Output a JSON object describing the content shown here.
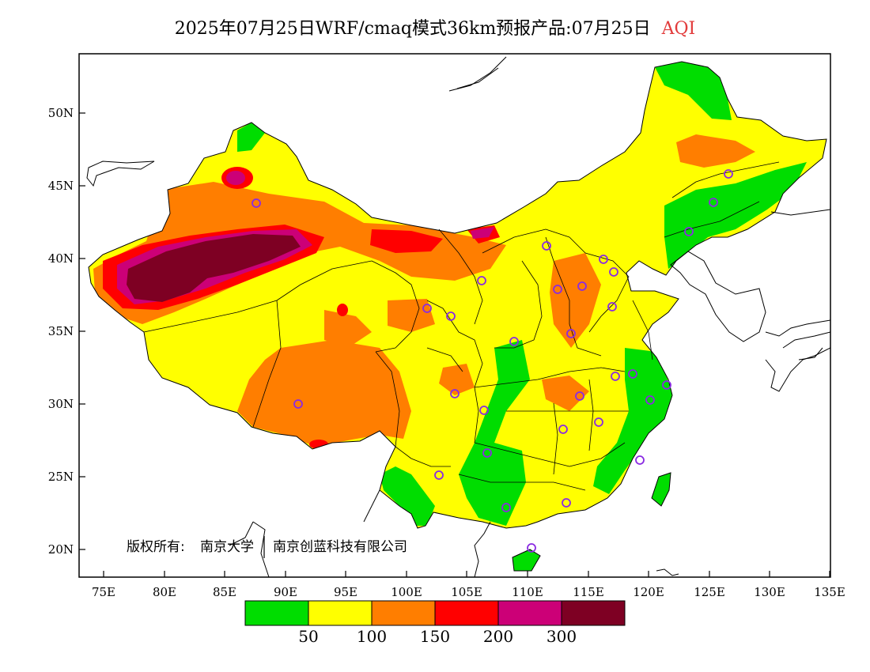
{
  "title": {
    "main": "2025年07月25日WRF/cmaq模式36km预报产品:07月25日",
    "product": "AQI",
    "product_color": "#e23b3b"
  },
  "axes": {
    "lat_ticks": [
      "50N",
      "45N",
      "40N",
      "35N",
      "30N",
      "25N",
      "20N"
    ],
    "lon_ticks": [
      "75E",
      "80E",
      "85E",
      "90E",
      "95E",
      "100E",
      "105E",
      "110E",
      "115E",
      "120E",
      "125E",
      "130E",
      "135E"
    ]
  },
  "copyright": {
    "owner_prefix": "版权所有:",
    "org1": "南京大学",
    "org2": "南京创蓝科技有限公司"
  },
  "legend": {
    "colors": [
      "#00dd00",
      "#ffff00",
      "#ff7e00",
      "#ff0000",
      "#cc0077",
      "#7e0023"
    ],
    "labels": [
      "50",
      "100",
      "150",
      "200",
      "300"
    ]
  }
}
